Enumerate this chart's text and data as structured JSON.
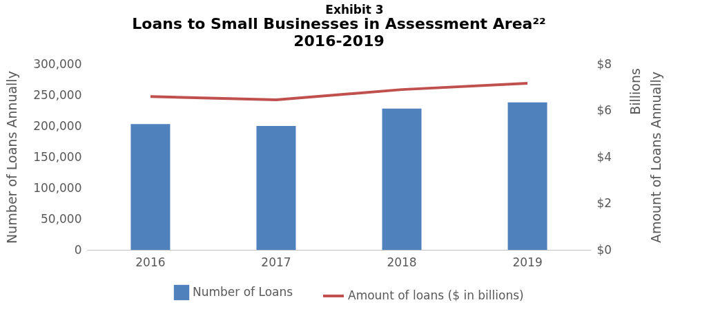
{
  "chart_data": {
    "type": "bar",
    "title": "Loans to Small Businesses in Assessment Area²²",
    "subtitle": "2016-2019",
    "annotations": [
      "Exhibit 3",
      "Billions"
    ],
    "ylabel": "Number of Loans Annually",
    "y2label": "Amount of Loans Annually",
    "categories": [
      "2016",
      "2017",
      "2018",
      "2019"
    ],
    "series": [
      {
        "name": "Number of Loans",
        "color": "#4f81bd",
        "values": [
          203000,
          200000,
          228000,
          238000
        ]
      },
      {
        "name": "Amount of loans ($ in billions)",
        "type": "line",
        "axis": "y2",
        "color": "#c0504d",
        "values": [
          6.6,
          6.46,
          6.9,
          7.17
        ]
      }
    ],
    "ylim": [
      0,
      300000
    ],
    "yticks": [
      {
        "value": 0,
        "label": "0"
      },
      {
        "value": 50000,
        "label": "50,000"
      },
      {
        "value": 100000,
        "label": "100,000"
      },
      {
        "value": 150000,
        "label": "150,000"
      },
      {
        "value": 200000,
        "label": "200,000"
      },
      {
        "value": 250000,
        "label": "250,000"
      },
      {
        "value": 300000,
        "label": "300,000"
      }
    ],
    "y2lim": [
      0,
      8
    ],
    "y2ticks": [
      {
        "value": 0,
        "label": "$0"
      },
      {
        "value": 2,
        "label": "$2"
      },
      {
        "value": 4,
        "label": "$4"
      },
      {
        "value": 6,
        "label": "$6"
      },
      {
        "value": 8,
        "label": "$8"
      }
    ],
    "legend": "bottom"
  }
}
